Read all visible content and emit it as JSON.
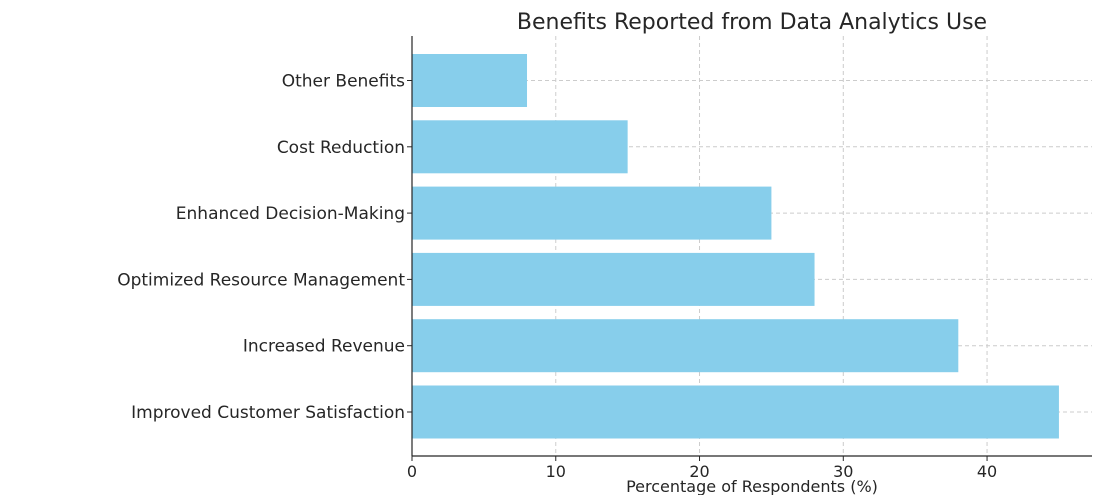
{
  "chart_data": {
    "type": "bar",
    "orientation": "horizontal",
    "title": "Benefits Reported from Data Analytics Use",
    "xlabel": "Percentage of Respondents (%)",
    "ylabel": "",
    "categories": [
      "Improved Customer Satisfaction",
      "Increased Revenue",
      "Optimized Resource Management",
      "Enhanced Decision-Making",
      "Cost Reduction",
      "Other Benefits"
    ],
    "values": [
      45,
      38,
      28,
      25,
      15,
      8
    ],
    "xlim": [
      0,
      47.3
    ],
    "xticks": [
      0,
      10,
      20,
      30,
      40
    ],
    "grid": true,
    "bar_color": "#87ceeb"
  }
}
